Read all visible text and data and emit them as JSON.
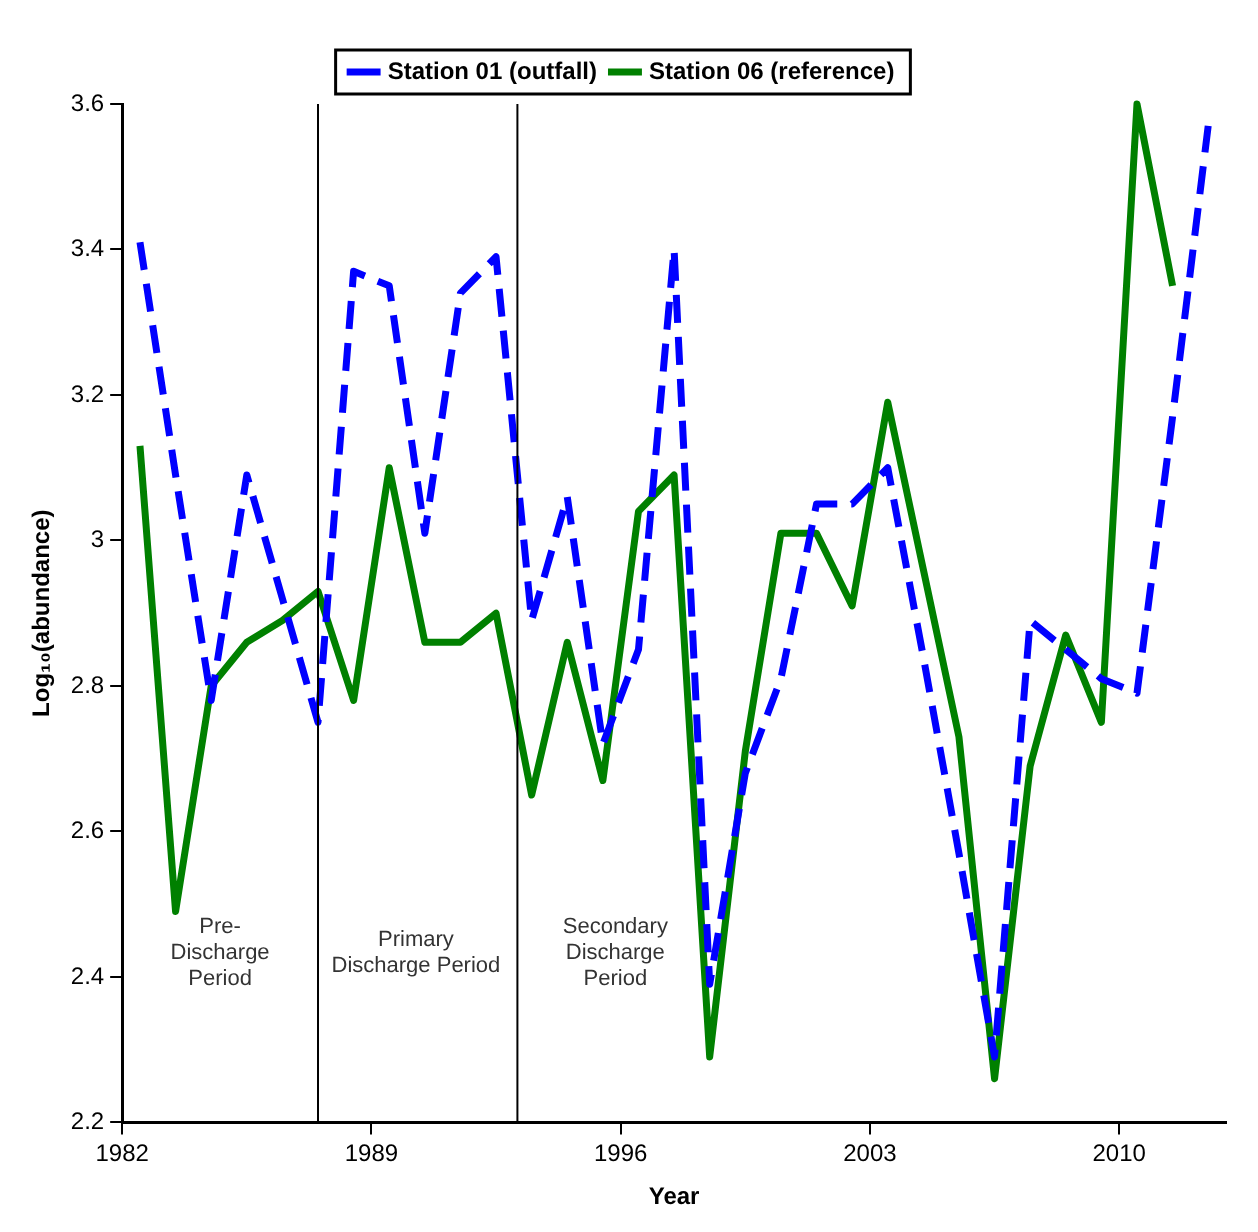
{
  "chart_data": {
    "type": "line",
    "xlabel": "Year",
    "ylabel": "Log₁₀(abundance)",
    "x": [
      1982.5,
      1983.5,
      1984.5,
      1985.5,
      1986.5,
      1987.5,
      1988.5,
      1989.5,
      1990.5,
      1991.5,
      1992.5,
      1993.5,
      1994.5,
      1995.5,
      1996.5,
      1997.5,
      1998.5,
      1999.5,
      2000.5,
      2001.5,
      2002.5,
      2003.5,
      2004.5,
      2005.5,
      2006.5,
      2007.5,
      2008.5,
      2009.5,
      2010.5,
      2011.5,
      2012.5
    ],
    "series": [
      {
        "name": "Station 01 (outfall)",
        "color": "#0000ff",
        "line_style": "dashed",
        "values": [
          3.41,
          3.09,
          2.78,
          3.09,
          2.92,
          2.75,
          3.37,
          3.35,
          3.01,
          3.34,
          3.39,
          2.89,
          3.06,
          2.72,
          2.85,
          3.4,
          2.39,
          2.68,
          2.81,
          3.05,
          3.05,
          3.1,
          2.84,
          2.57,
          2.29,
          2.89,
          2.85,
          2.81,
          2.79,
          3.17,
          3.57
        ]
      },
      {
        "name": "Station 06 (reference)",
        "color": "#008000",
        "line_style": "solid",
        "values": [
          3.13,
          2.49,
          2.8,
          2.86,
          2.89,
          2.93,
          2.78,
          3.1,
          2.86,
          2.86,
          2.9,
          2.65,
          2.86,
          2.67,
          3.04,
          3.09,
          2.29,
          2.71,
          3.01,
          3.01,
          2.91,
          3.19,
          2.96,
          2.73,
          2.26,
          2.69,
          2.87,
          2.75,
          3.6,
          3.35,
          null
        ]
      }
    ],
    "xlim": [
      1982,
      2013
    ],
    "xticks": [
      1982,
      1989,
      1996,
      2003,
      2010
    ],
    "ylim": [
      2.2,
      3.6
    ],
    "yticks": [
      2.2,
      2.4,
      2.6,
      2.8,
      3,
      3.2,
      3.4,
      3.6
    ],
    "grid": false,
    "legend": "top",
    "marker": "none",
    "ref_lines": [
      {
        "axis": "x",
        "value": 1987.5,
        "color": "#000000"
      },
      {
        "axis": "x",
        "value": 1993.1,
        "color": "#000000"
      }
    ],
    "annotations": [
      "Pre-\nDischarge\nPeriod",
      "Primary\nDischarge Period",
      "Secondary\nDischarge\nPeriod"
    ]
  }
}
